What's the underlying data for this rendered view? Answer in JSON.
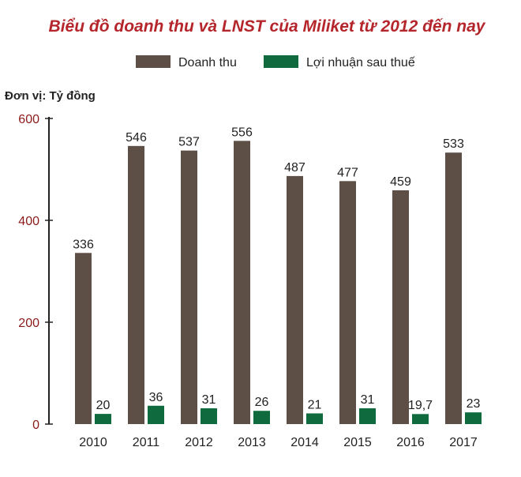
{
  "chart_data": {
    "type": "bar",
    "title": "Biểu đồ doanh thu và LNST của Miliket từ 2012 đến nay",
    "unit_label": "Đơn vị: Tỷ đồng",
    "categories": [
      "2010",
      "2011",
      "2012",
      "2013",
      "2014",
      "2015",
      "2016",
      "2017"
    ],
    "series": [
      {
        "name": "Doanh thu",
        "color": "#5d4e46",
        "values": [
          336,
          546,
          537,
          556,
          487,
          477,
          459,
          533
        ],
        "labels": [
          "336",
          "546",
          "537",
          "556",
          "487",
          "477",
          "459",
          "533"
        ]
      },
      {
        "name": "Lợi nhuận sau thuế",
        "color": "#0f6b3d",
        "values": [
          20,
          36,
          31,
          26,
          21,
          31,
          19.7,
          23
        ],
        "labels": [
          "20",
          "36",
          "31",
          "26",
          "21",
          "31",
          "19,7",
          "23"
        ]
      }
    ],
    "yticks": [
      "0",
      "200",
      "400",
      "600"
    ],
    "ytick_values": [
      0,
      200,
      400,
      600
    ],
    "ylim": [
      0,
      600
    ],
    "grid": false,
    "legend_position": "top-center",
    "colors": {
      "title": "#b5262c",
      "yticks": "#8b1a1a",
      "axis": "#222222"
    }
  }
}
